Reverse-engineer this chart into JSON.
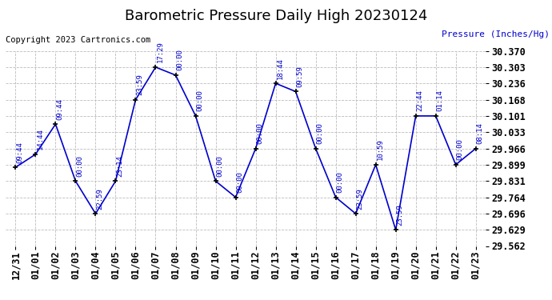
{
  "title": "Barometric Pressure Daily High 20230124",
  "ylabel": "Pressure (Inches/Hg)",
  "copyright": "Copyright 2023 Cartronics.com",
  "line_color": "#0000cc",
  "background_color": "#ffffff",
  "grid_color": "#bbbbbb",
  "ylim": [
    29.562,
    30.37
  ],
  "yticks": [
    29.562,
    29.629,
    29.696,
    29.764,
    29.831,
    29.899,
    29.966,
    30.033,
    30.101,
    30.168,
    30.236,
    30.303,
    30.37
  ],
  "dates": [
    "12/31",
    "01/01",
    "01/02",
    "01/03",
    "01/04",
    "01/05",
    "01/06",
    "01/07",
    "01/08",
    "01/09",
    "01/10",
    "01/11",
    "01/12",
    "01/13",
    "01/14",
    "01/15",
    "01/16",
    "01/17",
    "01/18",
    "01/19",
    "01/20",
    "01/21",
    "01/22",
    "01/23"
  ],
  "values": [
    29.888,
    29.942,
    30.067,
    29.831,
    29.696,
    29.831,
    30.168,
    30.303,
    30.27,
    30.101,
    29.831,
    29.764,
    29.966,
    30.236,
    30.202,
    29.966,
    29.764,
    29.696,
    29.899,
    29.629,
    30.101,
    30.101,
    29.899,
    29.966
  ],
  "annotations": [
    "09:44",
    "14:44",
    "09:44",
    "00:00",
    "22:59",
    "23:14",
    "23:59",
    "17:29",
    "00:00",
    "00:00",
    "00:00",
    "00:00",
    "00:00",
    "18:44",
    "09:59",
    "00:00",
    "00:00",
    "23:59",
    "10:59",
    "23:59",
    "22:44",
    "01:14",
    "00:00",
    "08:14"
  ],
  "title_fontsize": 13,
  "copyright_fontsize": 7.5,
  "annotation_fontsize": 6.5,
  "tick_fontsize": 8.5
}
